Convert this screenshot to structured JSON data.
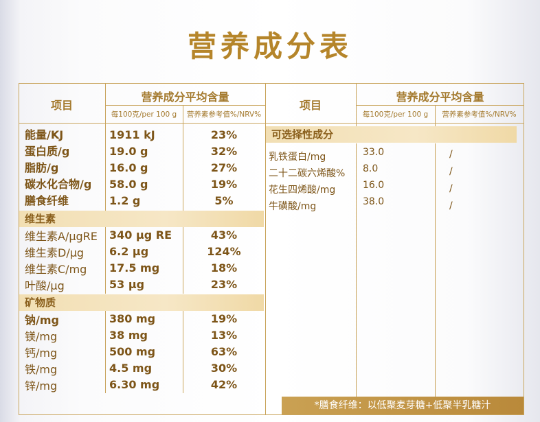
{
  "title": "营养成分表",
  "header": {
    "item": "项目",
    "avg": "营养成分平均含量",
    "per100": "每100克/per 100 g",
    "nrv": "营养素参考值%/NRV%"
  },
  "main_rows": [
    {
      "name": "能量/KJ",
      "value": "1911 kJ",
      "nrv": "23%",
      "bold": true
    },
    {
      "name": "蛋白质/g",
      "value": "19.0 g",
      "nrv": "32%",
      "bold": true
    },
    {
      "name": "脂肪/g",
      "value": "16.0 g",
      "nrv": "27%",
      "bold": true
    },
    {
      "name": "碳水化合物/g",
      "value": "58.0 g",
      "nrv": "19%",
      "bold": true
    },
    {
      "name": "膳食纤维",
      "value": "1.2 g",
      "nrv": "5%",
      "bold": true
    }
  ],
  "vitamin_section": "维生素",
  "vitamin_rows": [
    {
      "name": "维生素A/μgRE",
      "value": "340 μg RE",
      "nrv": "43%"
    },
    {
      "name": "维生素D/μg",
      "value": "6.2 μg",
      "nrv": "124%"
    },
    {
      "name": "维生素C/mg",
      "value": "17.5 mg",
      "nrv": "18%"
    },
    {
      "name": "叶酸/μg",
      "value": "53 μg",
      "nrv": "23%"
    }
  ],
  "mineral_section": "矿物质",
  "mineral_rows": [
    {
      "name": "钠/mg",
      "value": "380 mg",
      "nrv": "19%",
      "bold": true
    },
    {
      "name": "镁/mg",
      "value": "38 mg",
      "nrv": "13%"
    },
    {
      "name": "钙/mg",
      "value": "500 mg",
      "nrv": "63%"
    },
    {
      "name": "铁/mg",
      "value": "4.5 mg",
      "nrv": "30%"
    },
    {
      "name": "锌/mg",
      "value": "6.30 mg",
      "nrv": "42%"
    }
  ],
  "optional_section": "可选择性成分",
  "optional_rows": [
    {
      "name": "乳铁蛋白/mg",
      "value": "33.0",
      "nrv": "/"
    },
    {
      "name": "二十二碳六烯酸%",
      "value": "8.0",
      "nrv": "/"
    },
    {
      "name": "花生四烯酸/mg",
      "value": "16.0",
      "nrv": "/"
    },
    {
      "name": "牛磺酸/mg",
      "value": "38.0",
      "nrv": "/"
    }
  ],
  "note": "*膳食纤维：以低聚麦芽糖+低聚半乳糖汁"
}
